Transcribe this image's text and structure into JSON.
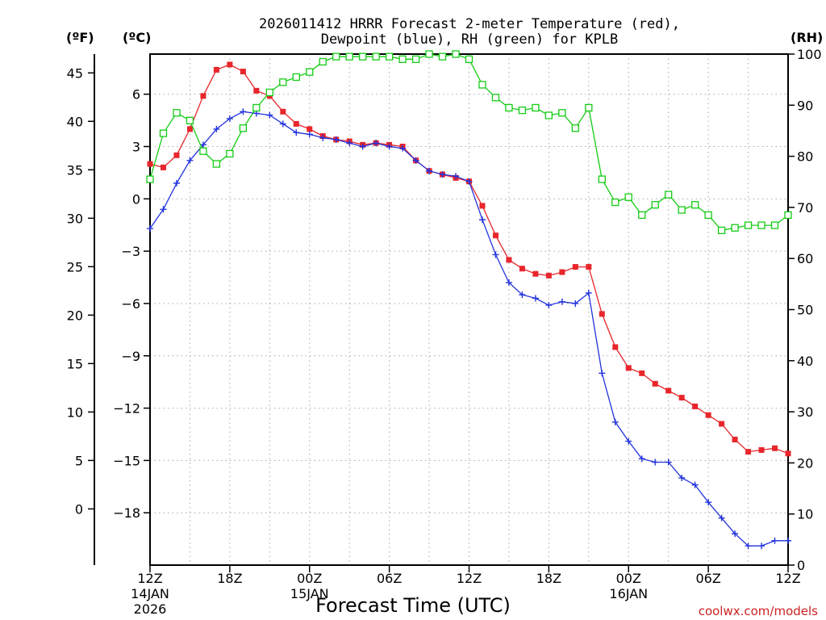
{
  "chart_data": {
    "type": "line",
    "title_line1": "2026011412 HRRR Forecast 2-meter Temperature (red),",
    "title_line2": "Dewpoint (blue), RH (green) for KPLB",
    "xlabel": "Forecast Time (UTC)",
    "credit": "coolwx.com/models",
    "units": {
      "fahrenheit": "(ºF)",
      "celsius": "(ºC)",
      "rh": "(RH)"
    },
    "x_range_hours": [
      0,
      48
    ],
    "celsius_ticks": [
      "6",
      "3",
      "0",
      "−3",
      "−6",
      "−9",
      "−12",
      "−15",
      "−18"
    ],
    "celsius_tick_values": [
      6,
      3,
      0,
      -3,
      -6,
      -9,
      -12,
      -15,
      -18
    ],
    "fahrenheit_ticks": [
      "45",
      "40",
      "35",
      "30",
      "25",
      "20",
      "15",
      "10",
      "5",
      "0"
    ],
    "fahrenheit_tick_values": [
      45,
      40,
      35,
      30,
      25,
      20,
      15,
      10,
      5,
      0
    ],
    "rh_ticks": [
      "100",
      "90",
      "80",
      "70",
      "60",
      "50",
      "40",
      "30",
      "20",
      "10",
      "0"
    ],
    "rh_tick_values": [
      100,
      90,
      80,
      70,
      60,
      50,
      40,
      30,
      20,
      10,
      0
    ],
    "celsius_range": [
      -21,
      8.3
    ],
    "rh_range": [
      0,
      100
    ],
    "x_ticks": [
      {
        "hour": 0,
        "label": "12Z",
        "sub1": "14JAN",
        "sub2": "2026"
      },
      {
        "hour": 6,
        "label": "18Z",
        "sub1": "",
        "sub2": ""
      },
      {
        "hour": 12,
        "label": "00Z",
        "sub1": "15JAN",
        "sub2": ""
      },
      {
        "hour": 18,
        "label": "06Z",
        "sub1": "",
        "sub2": ""
      },
      {
        "hour": 24,
        "label": "12Z",
        "sub1": "",
        "sub2": ""
      },
      {
        "hour": 30,
        "label": "18Z",
        "sub1": "",
        "sub2": ""
      },
      {
        "hour": 36,
        "label": "00Z",
        "sub1": "16JAN",
        "sub2": ""
      },
      {
        "hour": 42,
        "label": "06Z",
        "sub1": "",
        "sub2": ""
      },
      {
        "hour": 48,
        "label": "12Z",
        "sub1": "",
        "sub2": ""
      }
    ],
    "series": [
      {
        "name": "2-meter Temperature (°C)",
        "color": "#e8262b",
        "marker": "filled-square",
        "values": [
          2.0,
          1.8,
          2.5,
          4.0,
          5.9,
          7.4,
          7.7,
          7.3,
          6.2,
          5.9,
          5.0,
          4.3,
          4.0,
          3.6,
          3.4,
          3.3,
          3.1,
          3.2,
          3.1,
          3.0,
          2.2,
          1.6,
          1.4,
          1.2,
          1.0,
          -0.4,
          -2.1,
          -3.5,
          -4.0,
          -4.3,
          -4.4,
          -4.2,
          -3.9,
          -3.9,
          -6.6,
          -8.5,
          -9.7,
          -10.0,
          -10.6,
          -11.0,
          -11.4,
          -11.9,
          -12.4,
          -12.9,
          -13.8,
          -14.5,
          -14.4,
          -14.3,
          -14.6
        ]
      },
      {
        "name": "Dewpoint (°C)",
        "color": "#2233dd",
        "marker": "plus",
        "values": [
          -1.7,
          -0.6,
          0.9,
          2.2,
          3.1,
          4.0,
          4.6,
          5.0,
          4.9,
          4.8,
          4.3,
          3.8,
          3.7,
          3.5,
          3.4,
          3.2,
          3.0,
          3.2,
          3.0,
          2.9,
          2.2,
          1.6,
          1.4,
          1.3,
          1.0,
          -1.2,
          -3.2,
          -4.8,
          -5.5,
          -5.7,
          -6.1,
          -5.9,
          -6.0,
          -5.4,
          -10.0,
          -12.8,
          -13.9,
          -14.9,
          -15.1,
          -15.1,
          -16.0,
          -16.4,
          -17.4,
          -18.3,
          -19.2,
          -19.9,
          -19.9,
          -19.6,
          -19.6
        ]
      },
      {
        "name": "RH (%)",
        "color": "#15cc15",
        "marker": "open-square",
        "values": [
          75.5,
          84.5,
          88.5,
          87,
          81,
          78.5,
          80.5,
          85.5,
          89.5,
          92.5,
          94.5,
          95.5,
          96.5,
          98.5,
          99.5,
          99.5,
          99.5,
          99.5,
          99.5,
          99,
          99,
          100,
          99.5,
          100,
          99,
          94,
          91.5,
          89.5,
          89,
          89.5,
          88,
          88.5,
          85.5,
          89.5,
          75.5,
          71,
          72,
          68.5,
          70.5,
          72.5,
          69.5,
          70.5,
          68.5,
          65.5,
          66,
          66.5,
          66.5,
          66.5,
          68.5
        ]
      }
    ]
  }
}
